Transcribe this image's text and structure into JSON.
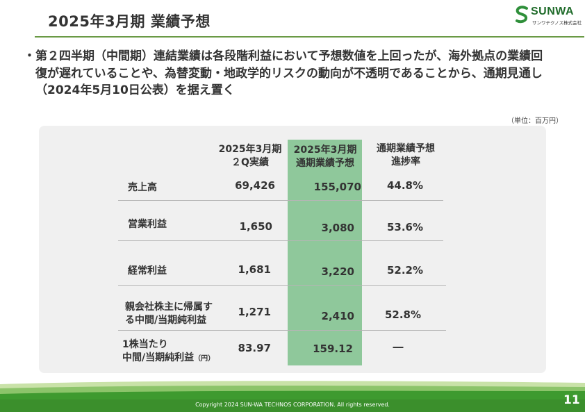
{
  "header": {
    "title": "2025年3月期 業績予想",
    "logo_name": "SUNWA",
    "logo_sub": "サンワテクノス株式会社"
  },
  "bullet": {
    "mark": "・",
    "text": "第２四半期（中間期）連結業績は各段階利益において予想数値を上回ったが、海外拠点の業績回復が遅れていることや、為替変動・地政学的リスクの動向が不透明であることから、通期見通し（2024年5月10日公表）を据え置く"
  },
  "table": {
    "unit_note": "（単位：百万円）",
    "columns": [
      {
        "line1": "2025年3月期",
        "line2": "２Q実績"
      },
      {
        "line1": "2025年3月期",
        "line2": "通期業績予想"
      },
      {
        "line1": "通期業績予想",
        "line2": "進捗率"
      }
    ],
    "rows": [
      {
        "label1": "売上高",
        "label2": "",
        "label_suffix": "",
        "actual": "69,426",
        "forecast": "155,070",
        "progress": "44.8%"
      },
      {
        "label1": "営業利益",
        "label2": "",
        "label_suffix": "",
        "actual": "1,650",
        "forecast": "3,080",
        "progress": "53.6%"
      },
      {
        "label1": "経常利益",
        "label2": "",
        "label_suffix": "",
        "actual": "1,681",
        "forecast": "3,220",
        "progress": "52.2%"
      },
      {
        "label1": "親会社株主に帰属す",
        "label2": "る中間/当期純利益",
        "label_suffix": "",
        "actual": "1,271",
        "forecast": "2,410",
        "progress": "52.8%"
      },
      {
        "label1": "1株当たり",
        "label2": "中間/当期純利益",
        "label_suffix": "（円）",
        "actual": "83.97",
        "forecast": "159.12",
        "progress": "―"
      }
    ]
  },
  "footer": {
    "copyright": "Copyright 2024 SUN-WA TECHNOS CORPORATION. All rights reserved.",
    "page_number": "11"
  },
  "colors": {
    "accent_green": "#6a9a45",
    "highlight_green": "#8fc89b",
    "footer_green": "#3e9a2f",
    "logo_green": "#1f6b2a"
  }
}
